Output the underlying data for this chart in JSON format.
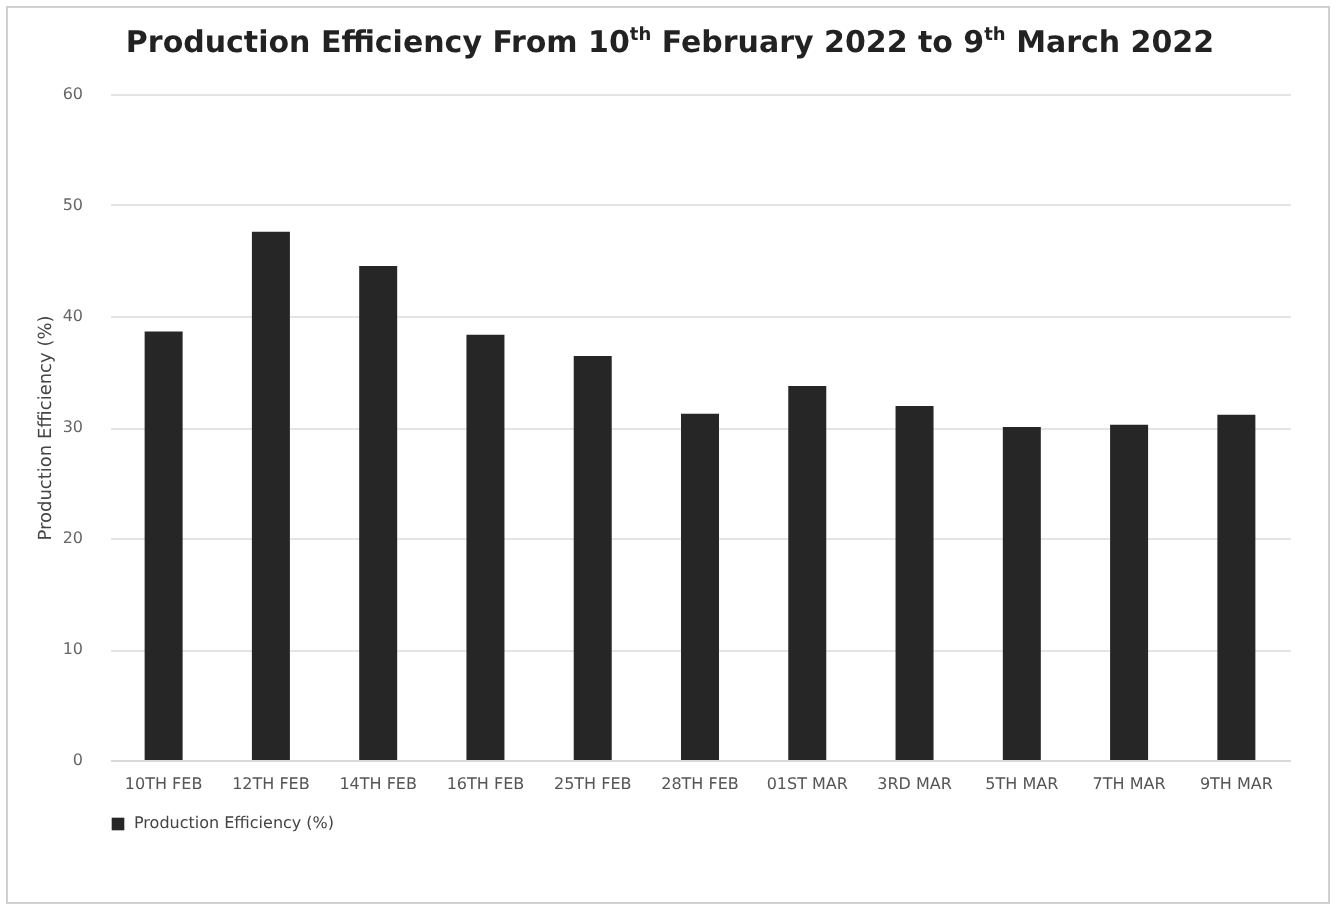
{
  "chart_data": {
    "type": "bar",
    "title": "Production Efficiency From 10$^{th}$ February 2022 to 9$^{th}$ March 2022",
    "ylabel": "Production Efficiency (%)",
    "categories": [
      "10TH FEB",
      "12TH FEB",
      "14TH FEB",
      "16TH FEB",
      "25TH FEB",
      "28TH FEB",
      "01ST MAR",
      "3RD MAR",
      "5TH MAR",
      "7TH MAR",
      "9TH MAR"
    ],
    "series": [
      {
        "name": "Production Efficiency (%)",
        "color": "#262626",
        "values": [
          38.6,
          47.6,
          44.5,
          38.3,
          36.4,
          31.2,
          33.7,
          31.9,
          30.0,
          30.2,
          31.1
        ]
      }
    ],
    "ylim": [
      0,
      60
    ],
    "yticks": [
      0,
      10,
      20,
      30,
      40,
      50,
      60
    ],
    "grid": "y",
    "legend": "bottom"
  }
}
